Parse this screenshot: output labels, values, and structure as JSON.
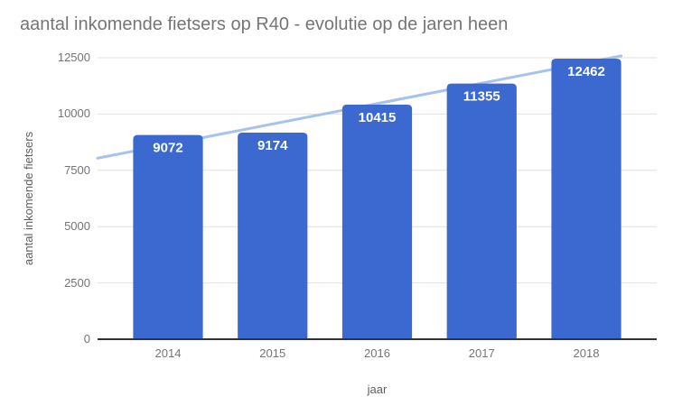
{
  "chart_data": {
    "type": "bar",
    "title": "aantal inkomende fietsers op R40 - evolutie op de jaren heen",
    "categories": [
      "2014",
      "2015",
      "2016",
      "2017",
      "2018"
    ],
    "values": [
      9072,
      9174,
      10415,
      11355,
      12462
    ],
    "xlabel": "jaar",
    "ylabel": "aantal inkomende fietsers",
    "ylim": [
      0,
      12500
    ],
    "yticks": [
      0,
      2500,
      5000,
      7500,
      10000,
      12500
    ],
    "grid": true,
    "legend": "none",
    "bar_color": "#3b69cf",
    "bar_label_color": "#ffffff",
    "trendline": {
      "type": "linear",
      "start_value": 8040,
      "end_value": 12580,
      "color": "#a5c2f0"
    },
    "colors": {
      "title_text": "#757575",
      "tick_text": "#757575",
      "axis_title_text": "#5f5f5f",
      "gridline": "#e0e0e0",
      "baseline": "#333333"
    }
  }
}
